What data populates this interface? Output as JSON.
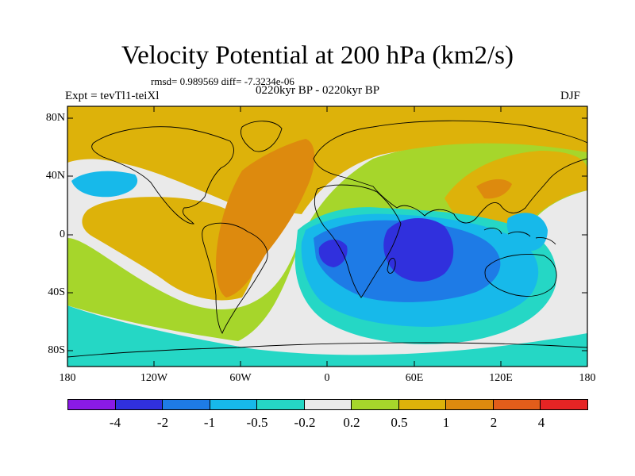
{
  "figure": {
    "title": "Velocity Potential at 200 hPa (km2/s)",
    "stats": "rmsd= 0.989569 diff= -7.3234e-06",
    "left_label": "Expt = tevTl1-teiXl",
    "center_label": "0220kyr BP - 0220kyr BP",
    "right_label": "DJF"
  },
  "axes": {
    "lat_ticks": [
      "80N",
      "40N",
      "0",
      "40S",
      "80S"
    ],
    "lon_ticks": [
      "180",
      "120W",
      "60W",
      "0",
      "60E",
      "120E",
      "180"
    ]
  },
  "colorbar": {
    "colors": [
      "#8a1ae6",
      "#3030dd",
      "#1e7be6",
      "#17b9ea",
      "#25d7c5",
      "#eaeaea",
      "#a6d62b",
      "#ddb20a",
      "#dd8a0e",
      "#e25d1a",
      "#e62424"
    ],
    "labels": [
      "-4",
      "-2",
      "-1",
      "-0.5",
      "-0.2",
      "0.2",
      "0.5",
      "1",
      "2",
      "4"
    ]
  },
  "field": {
    "colors": {
      "strong_negative": "#3030dd",
      "negative": "#1e7be6",
      "weak_negative": "#17b9ea",
      "slight_negative": "#25d7c5",
      "near_zero": "#eaeaea",
      "slight_positive": "#a6d62b",
      "positive": "#ddb20a",
      "strong_positive": "#dd8a0e",
      "very_strong_positive": "#e25d1a"
    }
  }
}
